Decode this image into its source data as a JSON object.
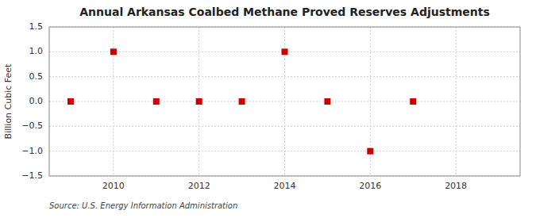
{
  "chart_data": {
    "type": "scatter",
    "title": "Annual Arkansas Coalbed Methane Proved Reserves Adjustments",
    "ylabel": "Billion Cubic Feet",
    "annotation": "Source: U.S. Energy Information Administration",
    "x": [
      2009,
      2010,
      2011,
      2012,
      2013,
      2014,
      2015,
      2016,
      2017
    ],
    "values": [
      0.0,
      1.0,
      0.0,
      0.0,
      0.0,
      1.0,
      0.0,
      -1.0,
      0.0
    ],
    "color": "#cc0000",
    "marker": "square",
    "xlim": [
      2008.5,
      2019.5
    ],
    "ylim": [
      -1.5,
      1.5
    ],
    "xticks": [
      2010,
      2012,
      2014,
      2016,
      2018
    ],
    "yticks": [
      {
        "value": -1.5,
        "label": "−1.5"
      },
      {
        "value": -1.0,
        "label": "−1.0"
      },
      {
        "value": -0.5,
        "label": "−0.5"
      },
      {
        "value": 0.0,
        "label": "0.0"
      },
      0.5,
      {
        "value": 1.0,
        "label": "1.0"
      },
      1.5
    ],
    "grid": true
  }
}
